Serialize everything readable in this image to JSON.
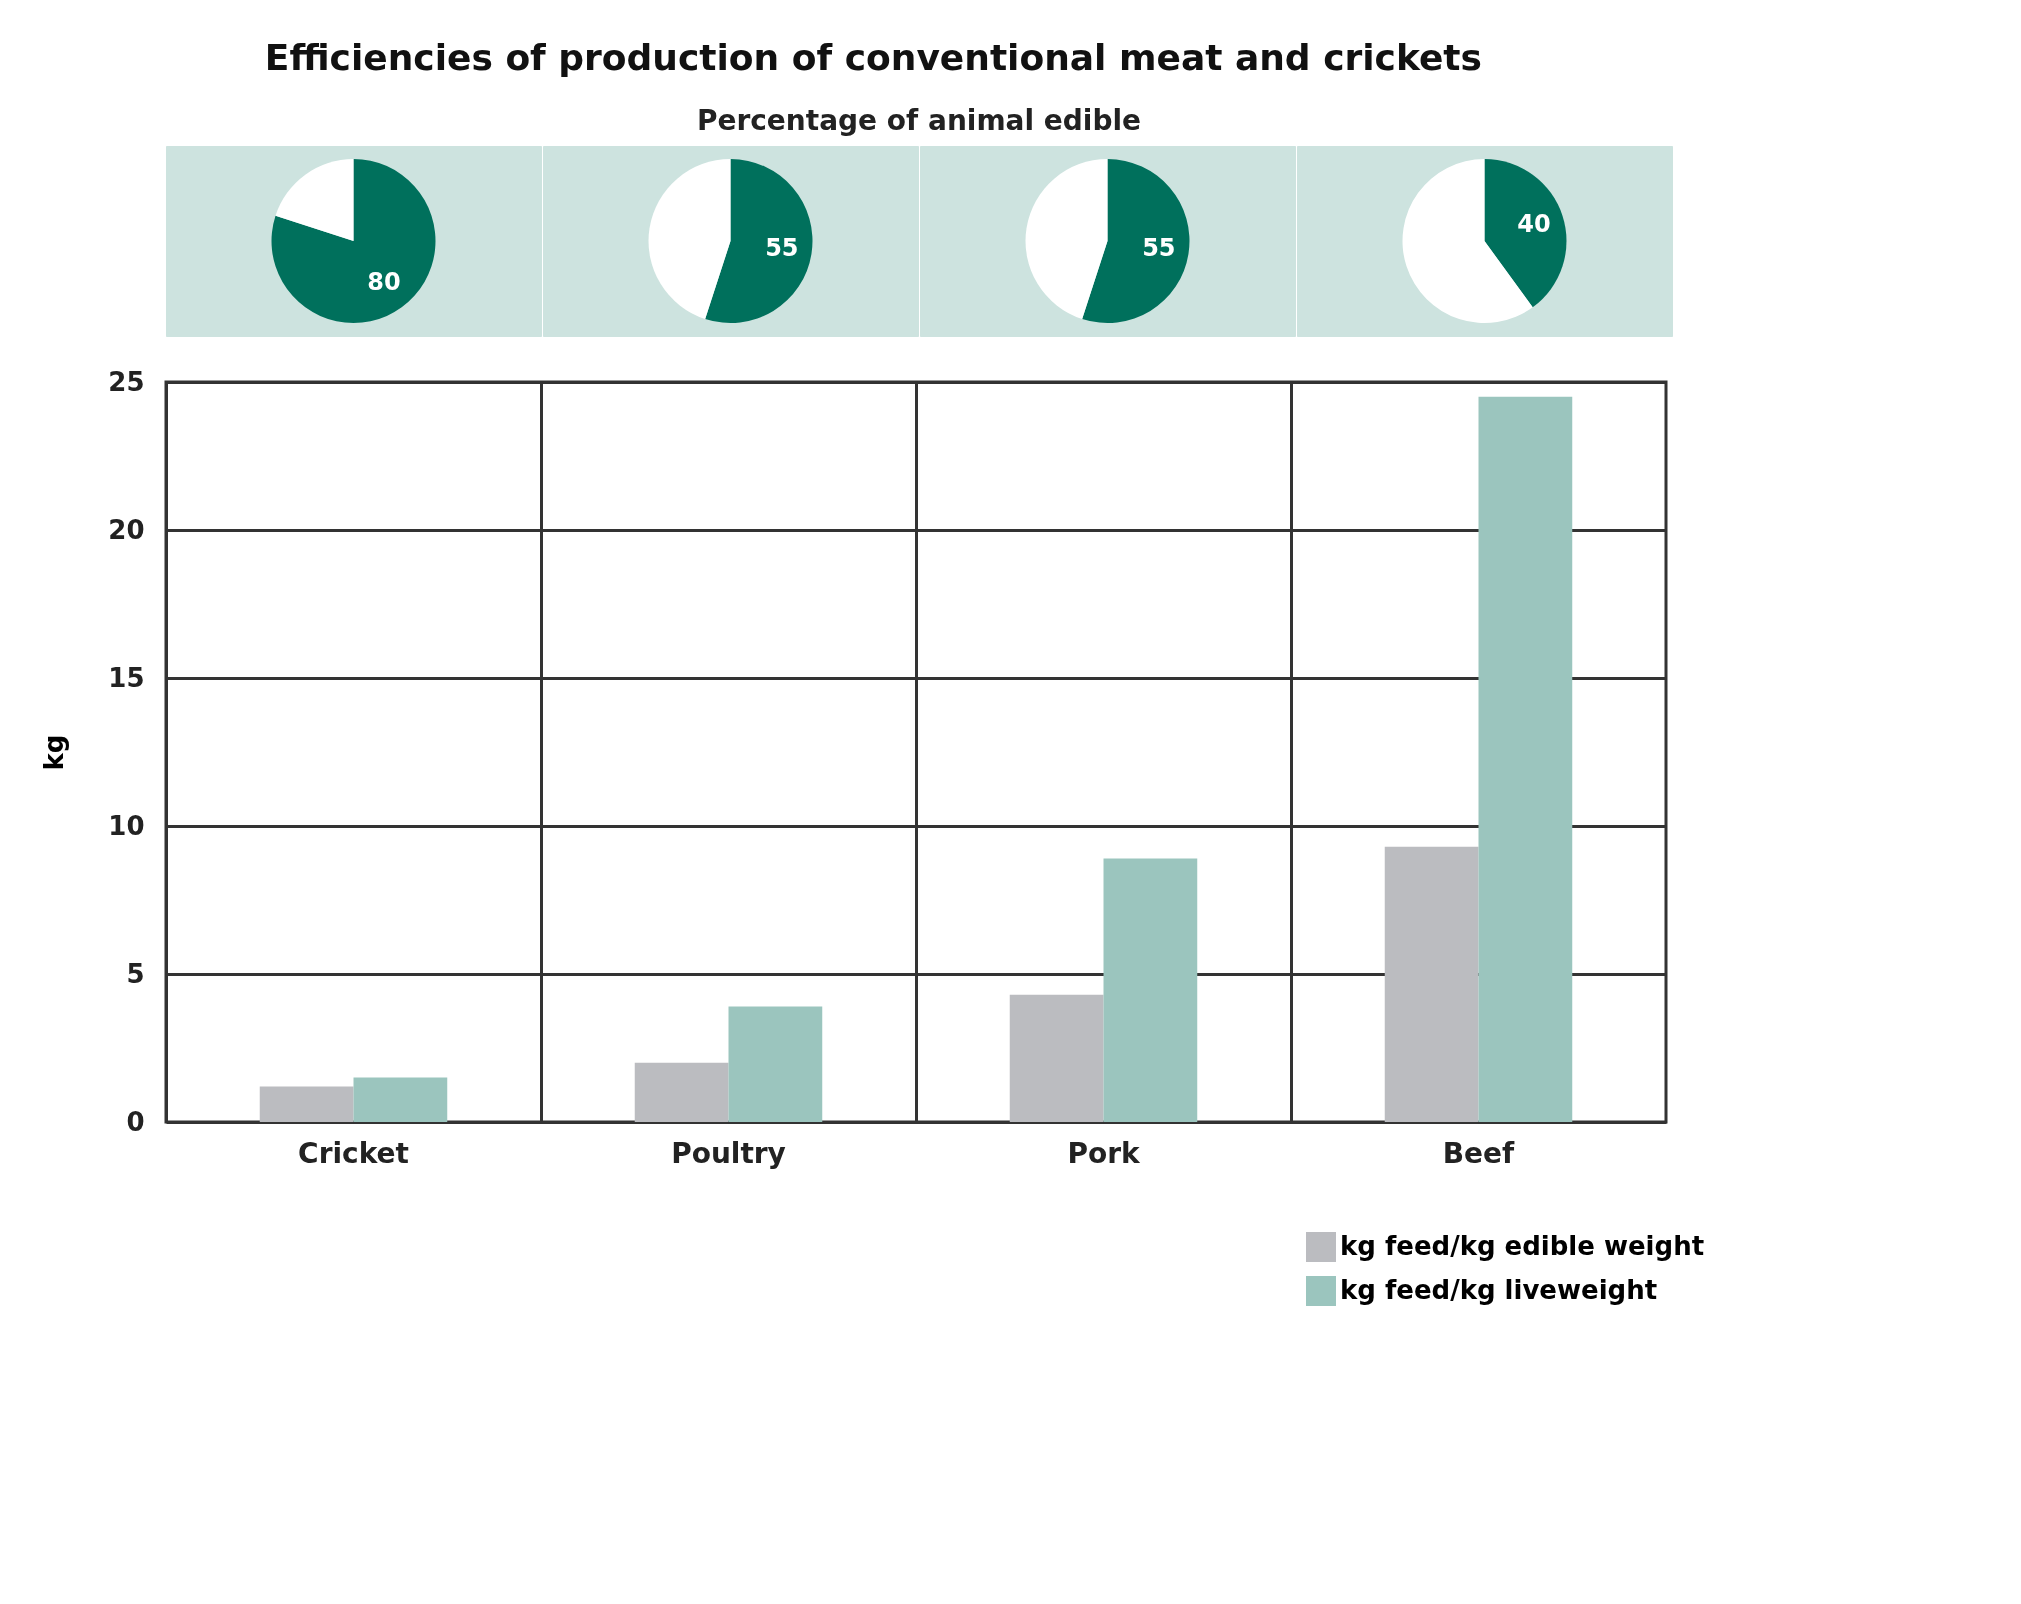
{
  "chart_data": [
    {
      "type": "pie",
      "title": "Percentage of animal edible",
      "categories": [
        null,
        null
      ],
      "values": [
        80,
        20
      ],
      "colors": [
        "#00705c",
        "#ffffff"
      ],
      "value_labels": [
        "80",
        null
      ]
    },
    {
      "type": "pie",
      "categories": [
        null,
        null
      ],
      "values": [
        55,
        45
      ],
      "colors": [
        "#00705c",
        "#ffffff"
      ],
      "value_labels": [
        "55",
        null
      ]
    },
    {
      "type": "pie",
      "categories": [
        null,
        null
      ],
      "values": [
        55,
        45
      ],
      "colors": [
        "#00705c",
        "#ffffff"
      ],
      "value_labels": [
        "55",
        null
      ]
    },
    {
      "type": "pie",
      "categories": [
        null,
        null
      ],
      "values": [
        40,
        60
      ],
      "colors": [
        "#00705c",
        "#ffffff"
      ],
      "value_labels": [
        "40",
        null
      ]
    },
    {
      "type": "bar",
      "title": "Efficiencies of production of conventional meat and crickets",
      "ylabel": "kg",
      "categories": [
        "Cricket",
        "Poultry",
        "Pork",
        "Beef"
      ],
      "series": [
        {
          "name": "kg feed/kg edible weight",
          "color": "#bbbcc0",
          "values": [
            1.2,
            2.0,
            4.3,
            9.3
          ]
        },
        {
          "name": "kg feed/kg liveweight",
          "color": "#9bc5be",
          "values": [
            1.5,
            3.9,
            8.9,
            24.5
          ]
        }
      ],
      "ylim": [
        0,
        25
      ],
      "yticks": [
        0,
        5,
        10,
        15,
        20,
        25
      ],
      "grid": true,
      "legend": "bottom right"
    }
  ]
}
